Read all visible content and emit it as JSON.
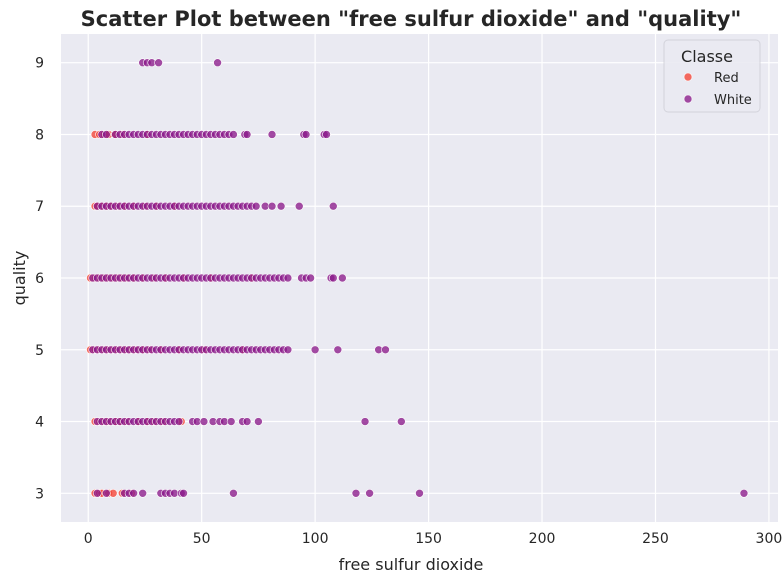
{
  "chart_data": {
    "type": "scatter",
    "title": "Scatter Plot between \"free sulfur dioxide\" and \"quality\"",
    "xlabel": "free sulfur dioxide",
    "ylabel": "quality",
    "xlim": [
      -12,
      304
    ],
    "ylim": [
      2.6,
      9.4
    ],
    "xticks": [
      "0",
      "50",
      "100",
      "150",
      "200",
      "250",
      "300"
    ],
    "yticks": [
      "3",
      "4",
      "5",
      "6",
      "7",
      "8",
      "9"
    ],
    "grid": true,
    "background": "#eaeaf2",
    "legend": {
      "title": "Classe",
      "placement": "top-right"
    },
    "series": [
      {
        "name": "Red",
        "color": "#f44336",
        "points": [
          [
            3,
            3
          ],
          [
            5,
            3
          ],
          [
            6,
            3
          ],
          [
            9,
            3
          ],
          [
            11,
            3
          ],
          [
            15,
            3
          ],
          [
            19,
            3
          ],
          [
            3,
            4
          ],
          [
            5,
            4
          ],
          [
            7,
            4
          ],
          [
            9,
            4
          ],
          [
            12,
            4
          ],
          [
            14,
            4
          ],
          [
            17,
            4
          ],
          [
            22,
            4
          ],
          [
            26,
            4
          ],
          [
            29,
            4
          ],
          [
            33,
            4
          ],
          [
            41,
            4
          ],
          [
            1,
            5
          ],
          [
            3,
            5
          ],
          [
            5,
            5
          ],
          [
            7,
            5
          ],
          [
            9,
            5
          ],
          [
            11,
            5
          ],
          [
            13,
            5
          ],
          [
            15,
            5
          ],
          [
            17,
            5
          ],
          [
            19,
            5
          ],
          [
            21,
            5
          ],
          [
            24,
            5
          ],
          [
            27,
            5
          ],
          [
            32,
            5
          ],
          [
            40,
            5
          ],
          [
            51,
            5
          ],
          [
            68,
            5
          ],
          [
            1,
            6
          ],
          [
            3,
            6
          ],
          [
            5,
            6
          ],
          [
            7,
            6
          ],
          [
            9,
            6
          ],
          [
            11,
            6
          ],
          [
            13,
            6
          ],
          [
            15,
            6
          ],
          [
            17,
            6
          ],
          [
            20,
            6
          ],
          [
            24,
            6
          ],
          [
            29,
            6
          ],
          [
            34,
            6
          ],
          [
            42,
            6
          ],
          [
            54,
            6
          ],
          [
            72,
            6
          ],
          [
            3,
            7
          ],
          [
            4,
            7
          ],
          [
            6,
            7
          ],
          [
            8,
            7
          ],
          [
            10,
            7
          ],
          [
            13,
            7
          ],
          [
            16,
            7
          ],
          [
            20,
            7
          ],
          [
            25,
            7
          ],
          [
            30,
            7
          ],
          [
            38,
            7
          ],
          [
            3,
            8
          ],
          [
            5,
            8
          ],
          [
            7,
            8
          ],
          [
            9,
            8
          ],
          [
            12,
            8
          ],
          [
            15,
            8
          ],
          [
            26,
            8
          ]
        ]
      },
      {
        "name": "White",
        "color": "#8b1a8b",
        "points": [
          [
            4,
            3
          ],
          [
            8,
            3
          ],
          [
            16,
            3
          ],
          [
            18,
            3
          ],
          [
            20,
            3
          ],
          [
            24,
            3
          ],
          [
            32,
            3
          ],
          [
            34,
            3
          ],
          [
            36,
            3
          ],
          [
            38,
            3
          ],
          [
            41,
            3
          ],
          [
            42,
            3
          ],
          [
            64,
            3
          ],
          [
            118,
            3
          ],
          [
            124,
            3
          ],
          [
            146,
            3
          ],
          [
            289,
            3
          ],
          [
            4,
            4
          ],
          [
            6,
            4
          ],
          [
            8,
            4
          ],
          [
            10,
            4
          ],
          [
            12,
            4
          ],
          [
            14,
            4
          ],
          [
            16,
            4
          ],
          [
            18,
            4
          ],
          [
            20,
            4
          ],
          [
            22,
            4
          ],
          [
            24,
            4
          ],
          [
            26,
            4
          ],
          [
            28,
            4
          ],
          [
            30,
            4
          ],
          [
            32,
            4
          ],
          [
            34,
            4
          ],
          [
            36,
            4
          ],
          [
            38,
            4
          ],
          [
            40,
            4
          ],
          [
            46,
            4
          ],
          [
            48,
            4
          ],
          [
            51,
            4
          ],
          [
            55,
            4
          ],
          [
            58,
            4
          ],
          [
            60,
            4
          ],
          [
            63,
            4
          ],
          [
            68,
            4
          ],
          [
            70,
            4
          ],
          [
            75,
            4
          ],
          [
            122,
            4
          ],
          [
            138,
            4
          ],
          [
            2,
            5
          ],
          [
            4,
            5
          ],
          [
            6,
            5
          ],
          [
            8,
            5
          ],
          [
            10,
            5
          ],
          [
            12,
            5
          ],
          [
            14,
            5
          ],
          [
            16,
            5
          ],
          [
            18,
            5
          ],
          [
            20,
            5
          ],
          [
            22,
            5
          ],
          [
            24,
            5
          ],
          [
            26,
            5
          ],
          [
            28,
            5
          ],
          [
            30,
            5
          ],
          [
            32,
            5
          ],
          [
            34,
            5
          ],
          [
            36,
            5
          ],
          [
            38,
            5
          ],
          [
            40,
            5
          ],
          [
            42,
            5
          ],
          [
            44,
            5
          ],
          [
            46,
            5
          ],
          [
            48,
            5
          ],
          [
            50,
            5
          ],
          [
            52,
            5
          ],
          [
            54,
            5
          ],
          [
            56,
            5
          ],
          [
            58,
            5
          ],
          [
            60,
            5
          ],
          [
            62,
            5
          ],
          [
            64,
            5
          ],
          [
            66,
            5
          ],
          [
            68,
            5
          ],
          [
            70,
            5
          ],
          [
            72,
            5
          ],
          [
            74,
            5
          ],
          [
            76,
            5
          ],
          [
            78,
            5
          ],
          [
            80,
            5
          ],
          [
            82,
            5
          ],
          [
            84,
            5
          ],
          [
            86,
            5
          ],
          [
            88,
            5
          ],
          [
            100,
            5
          ],
          [
            110,
            5
          ],
          [
            128,
            5
          ],
          [
            131,
            5
          ],
          [
            2,
            6
          ],
          [
            4,
            6
          ],
          [
            6,
            6
          ],
          [
            8,
            6
          ],
          [
            10,
            6
          ],
          [
            12,
            6
          ],
          [
            14,
            6
          ],
          [
            16,
            6
          ],
          [
            18,
            6
          ],
          [
            20,
            6
          ],
          [
            22,
            6
          ],
          [
            24,
            6
          ],
          [
            26,
            6
          ],
          [
            28,
            6
          ],
          [
            30,
            6
          ],
          [
            32,
            6
          ],
          [
            34,
            6
          ],
          [
            36,
            6
          ],
          [
            38,
            6
          ],
          [
            40,
            6
          ],
          [
            42,
            6
          ],
          [
            44,
            6
          ],
          [
            46,
            6
          ],
          [
            48,
            6
          ],
          [
            50,
            6
          ],
          [
            52,
            6
          ],
          [
            54,
            6
          ],
          [
            56,
            6
          ],
          [
            58,
            6
          ],
          [
            60,
            6
          ],
          [
            62,
            6
          ],
          [
            64,
            6
          ],
          [
            66,
            6
          ],
          [
            68,
            6
          ],
          [
            70,
            6
          ],
          [
            72,
            6
          ],
          [
            74,
            6
          ],
          [
            76,
            6
          ],
          [
            78,
            6
          ],
          [
            80,
            6
          ],
          [
            82,
            6
          ],
          [
            84,
            6
          ],
          [
            86,
            6
          ],
          [
            88,
            6
          ],
          [
            94,
            6
          ],
          [
            96,
            6
          ],
          [
            98,
            6
          ],
          [
            107,
            6
          ],
          [
            108,
            6
          ],
          [
            112,
            6
          ],
          [
            4,
            7
          ],
          [
            6,
            7
          ],
          [
            8,
            7
          ],
          [
            10,
            7
          ],
          [
            12,
            7
          ],
          [
            14,
            7
          ],
          [
            16,
            7
          ],
          [
            18,
            7
          ],
          [
            20,
            7
          ],
          [
            22,
            7
          ],
          [
            24,
            7
          ],
          [
            26,
            7
          ],
          [
            28,
            7
          ],
          [
            30,
            7
          ],
          [
            32,
            7
          ],
          [
            34,
            7
          ],
          [
            36,
            7
          ],
          [
            38,
            7
          ],
          [
            40,
            7
          ],
          [
            42,
            7
          ],
          [
            44,
            7
          ],
          [
            46,
            7
          ],
          [
            48,
            7
          ],
          [
            50,
            7
          ],
          [
            52,
            7
          ],
          [
            54,
            7
          ],
          [
            56,
            7
          ],
          [
            58,
            7
          ],
          [
            60,
            7
          ],
          [
            62,
            7
          ],
          [
            64,
            7
          ],
          [
            66,
            7
          ],
          [
            68,
            7
          ],
          [
            70,
            7
          ],
          [
            72,
            7
          ],
          [
            74,
            7
          ],
          [
            78,
            7
          ],
          [
            81,
            7
          ],
          [
            85,
            7
          ],
          [
            93,
            7
          ],
          [
            108,
            7
          ],
          [
            6,
            8
          ],
          [
            8,
            8
          ],
          [
            12,
            8
          ],
          [
            14,
            8
          ],
          [
            16,
            8
          ],
          [
            18,
            8
          ],
          [
            20,
            8
          ],
          [
            22,
            8
          ],
          [
            24,
            8
          ],
          [
            26,
            8
          ],
          [
            28,
            8
          ],
          [
            30,
            8
          ],
          [
            32,
            8
          ],
          [
            34,
            8
          ],
          [
            36,
            8
          ],
          [
            38,
            8
          ],
          [
            40,
            8
          ],
          [
            42,
            8
          ],
          [
            44,
            8
          ],
          [
            46,
            8
          ],
          [
            48,
            8
          ],
          [
            50,
            8
          ],
          [
            52,
            8
          ],
          [
            54,
            8
          ],
          [
            56,
            8
          ],
          [
            58,
            8
          ],
          [
            60,
            8
          ],
          [
            62,
            8
          ],
          [
            64,
            8
          ],
          [
            69,
            8
          ],
          [
            70,
            8
          ],
          [
            81,
            8
          ],
          [
            95,
            8
          ],
          [
            96,
            8
          ],
          [
            104,
            8
          ],
          [
            105,
            8
          ],
          [
            24,
            9
          ],
          [
            26,
            9
          ],
          [
            28,
            9
          ],
          [
            31,
            9
          ],
          [
            57,
            9
          ]
        ]
      }
    ]
  }
}
